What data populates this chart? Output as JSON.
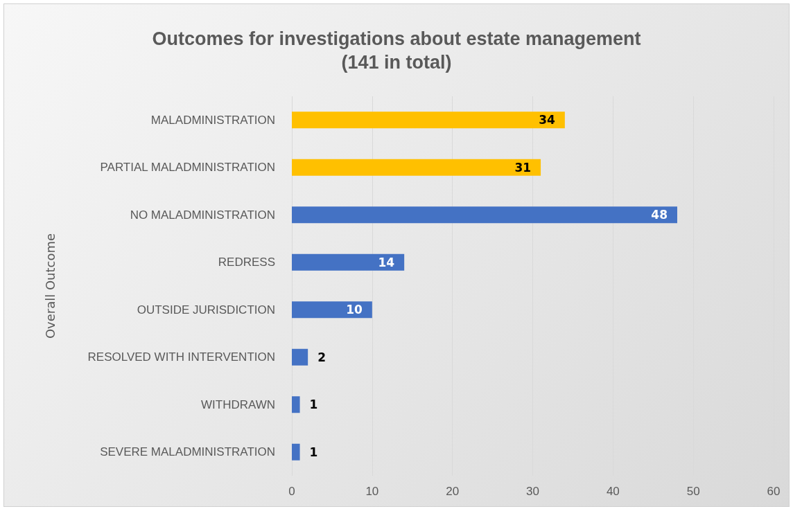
{
  "chart_data": {
    "type": "bar",
    "orientation": "horizontal",
    "title": "Outcomes for investigations about estate management\n(141 in total)",
    "ylabel": "Overall Outcome",
    "categories": [
      "MALADMINISTRATION",
      "PARTIAL MALADMINISTRATION",
      "NO MALADMINISTRATION",
      "REDRESS",
      "OUTSIDE JURISDICTION",
      "RESOLVED WITH INTERVENTION",
      "WITHDRAWN",
      "SEVERE MALADMINISTRATION"
    ],
    "values": [
      34,
      31,
      48,
      14,
      10,
      2,
      1,
      1
    ],
    "colors": [
      "#ffc000",
      "#ffc000",
      "#4472c4",
      "#4472c4",
      "#4472c4",
      "#4472c4",
      "#4472c4",
      "#4472c4"
    ],
    "xlim": [
      0,
      60
    ],
    "xticks": [
      0,
      10,
      20,
      30,
      40,
      50,
      60
    ],
    "grid": "x",
    "data_labels": true
  }
}
